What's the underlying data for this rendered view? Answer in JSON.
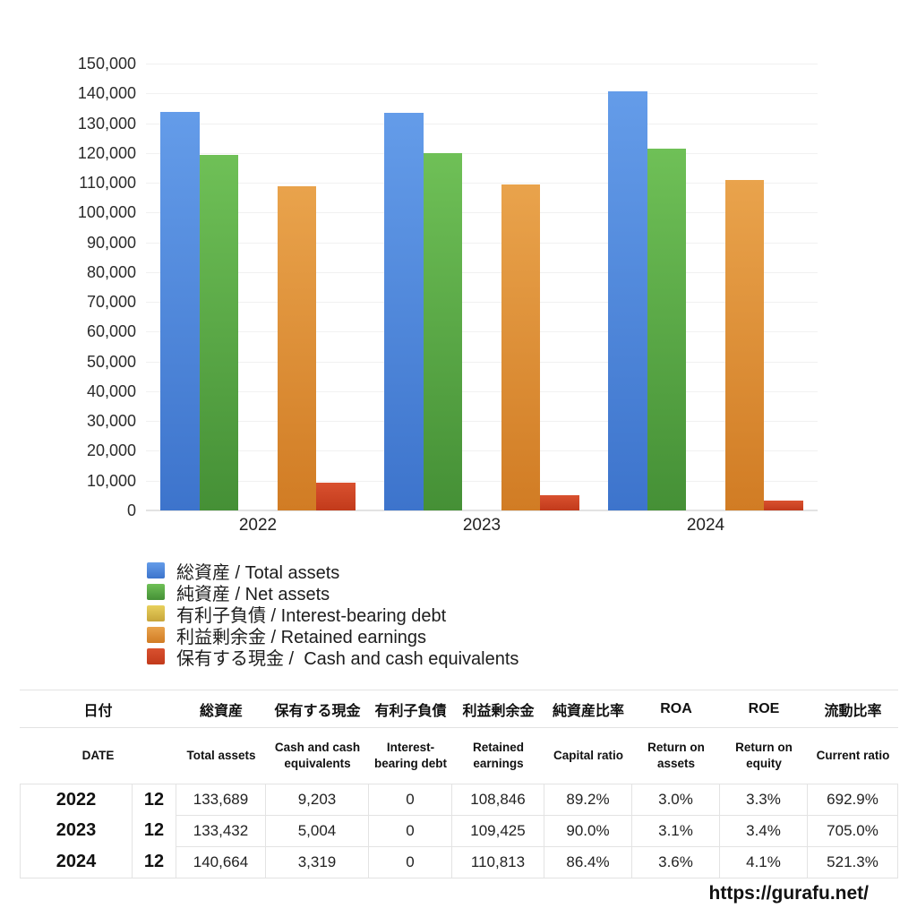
{
  "chart_data": {
    "type": "bar",
    "title": "",
    "categories": [
      "2022",
      "2023",
      "2024"
    ],
    "series": [
      {
        "name": "total-assets",
        "label": "総資産 / Total assets",
        "color_top": "#649ce9",
        "color_bottom": "#3d74cc",
        "values": [
          133689,
          133432,
          140664
        ]
      },
      {
        "name": "net-assets",
        "label": "純資産 / Net assets",
        "color_top": "#6fc057",
        "color_bottom": "#459036",
        "values": [
          119251,
          120089,
          121534
        ]
      },
      {
        "name": "interest-bearing-debt",
        "label": "有利子負債 / Interest-bearing debt",
        "color_top": "#e8d05c",
        "color_bottom": "#c7a53a",
        "values": [
          0,
          0,
          0
        ]
      },
      {
        "name": "retained-earnings",
        "label": "利益剰余金 / Retained earnings",
        "color_top": "#e9a34c",
        "color_bottom": "#d17c24",
        "values": [
          108846,
          109425,
          110813
        ]
      },
      {
        "name": "cash-and-cash-equivalents",
        "label": "保有する現金 /  Cash and cash equivalents",
        "color_top": "#d9512f",
        "color_bottom": "#c23a1b",
        "values": [
          9203,
          5004,
          3319
        ]
      }
    ],
    "xlabel": "",
    "ylabel": "",
    "ylim": [
      0,
      150000
    ],
    "ytick_step": 10000,
    "yticks": [
      "0",
      "10,000",
      "20,000",
      "30,000",
      "40,000",
      "50,000",
      "60,000",
      "70,000",
      "80,000",
      "90,000",
      "100,000",
      "110,000",
      "120,000",
      "130,000",
      "140,000",
      "150,000"
    ],
    "grid": true,
    "legend_position": "bottom-left"
  },
  "table": {
    "header_ja": [
      "日付",
      "総資産",
      "保有する現金",
      "有利子負債",
      "利益剰余金",
      "純資産比率",
      "ROA",
      "ROE",
      "流動比率"
    ],
    "header_en": [
      "DATE",
      "Total assets",
      "Cash and cash equivalents",
      "Interest-bearing debt",
      "Retained earnings",
      "Capital ratio",
      "Return on assets",
      "Return on equity",
      "Current ratio"
    ],
    "rows": [
      [
        "2022",
        "12",
        "133,689",
        "9,203",
        "0",
        "108,846",
        "89.2%",
        "3.0%",
        "3.3%",
        "692.9%"
      ],
      [
        "2023",
        "12",
        "133,432",
        "5,004",
        "0",
        "109,425",
        "90.0%",
        "3.1%",
        "3.4%",
        "705.0%"
      ],
      [
        "2024",
        "12",
        "140,664",
        "3,319",
        "0",
        "110,813",
        "86.4%",
        "3.6%",
        "4.1%",
        "521.3%"
      ]
    ]
  },
  "footer": {
    "url": "https://gurafu.net/"
  }
}
